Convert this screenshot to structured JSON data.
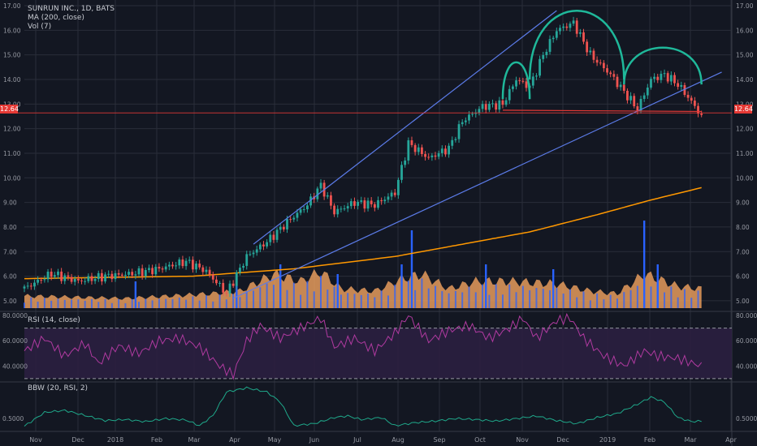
{
  "legend": {
    "main": "SUNRUN INC., 1D, BATS",
    "ma": "MA (200, close)",
    "vol": "Vol (7)",
    "rsi": "RSI (14, close)",
    "bbw": "BBW (20, RSI, 2)"
  },
  "price_tag": "12.64",
  "colors": {
    "background": "#131722",
    "grid": "#2a2e39",
    "up": "#26a69a",
    "down": "#ef5350",
    "ma": "#ff9800",
    "volume_area": "#f4a460",
    "volume_bar": "#2962ff",
    "trendline": "#5b7be8",
    "pattern": "#1fb89a",
    "neckline": "#e53935",
    "rsi": "#b03aa0",
    "rsi_band": "#2b1f40",
    "bbw": "#1fa88a"
  },
  "chart_data": [
    {
      "type": "candlestick",
      "title": "SUNRUN INC., 1D, BATS",
      "x_ticks": [
        "Nov",
        "Dec",
        "2018",
        "Feb",
        "Mar",
        "Apr",
        "May",
        "Jun",
        "Jul",
        "Aug",
        "Sep",
        "Oct",
        "Nov",
        "Dec",
        "2019",
        "Feb",
        "Mar",
        "Apr"
      ],
      "y_ticks": [
        "17.00",
        "16.00",
        "15.00",
        "14.00",
        "13.00",
        "12.00",
        "11.00",
        "10.00",
        "9.00",
        "8.00",
        "7.00",
        "6.00",
        "5.00"
      ],
      "ylim": [
        4.7,
        17.1
      ],
      "grid": true,
      "last_price": 12.64,
      "price_anchors": [
        {
          "t": 0,
          "v": 5.5
        },
        {
          "t": 8,
          "v": 6.1
        },
        {
          "t": 16,
          "v": 5.8
        },
        {
          "t": 24,
          "v": 6.0
        },
        {
          "t": 32,
          "v": 6.1
        },
        {
          "t": 40,
          "v": 6.3
        },
        {
          "t": 48,
          "v": 6.6
        },
        {
          "t": 54,
          "v": 6.2
        },
        {
          "t": 60,
          "v": 5.3
        },
        {
          "t": 66,
          "v": 6.8
        },
        {
          "t": 72,
          "v": 7.4
        },
        {
          "t": 78,
          "v": 8.2
        },
        {
          "t": 84,
          "v": 8.9
        },
        {
          "t": 88,
          "v": 9.7
        },
        {
          "t": 92,
          "v": 8.6
        },
        {
          "t": 98,
          "v": 9.0
        },
        {
          "t": 104,
          "v": 8.9
        },
        {
          "t": 110,
          "v": 9.4
        },
        {
          "t": 114,
          "v": 11.4
        },
        {
          "t": 120,
          "v": 10.8
        },
        {
          "t": 126,
          "v": 11.2
        },
        {
          "t": 130,
          "v": 12.3
        },
        {
          "t": 136,
          "v": 12.9
        },
        {
          "t": 142,
          "v": 13.0
        },
        {
          "t": 146,
          "v": 14.0
        },
        {
          "t": 150,
          "v": 13.7
        },
        {
          "t": 154,
          "v": 15.0
        },
        {
          "t": 158,
          "v": 16.0
        },
        {
          "t": 163,
          "v": 16.3
        },
        {
          "t": 168,
          "v": 15.0
        },
        {
          "t": 174,
          "v": 14.2
        },
        {
          "t": 178,
          "v": 13.5
        },
        {
          "t": 182,
          "v": 12.8
        },
        {
          "t": 186,
          "v": 14.0
        },
        {
          "t": 190,
          "v": 14.2
        },
        {
          "t": 194,
          "v": 13.8
        },
        {
          "t": 198,
          "v": 13.1
        },
        {
          "t": 201,
          "v": 12.5
        }
      ],
      "ma200": [
        {
          "t": 0,
          "v": 5.9
        },
        {
          "t": 50,
          "v": 6.0
        },
        {
          "t": 80,
          "v": 6.3
        },
        {
          "t": 110,
          "v": 6.8
        },
        {
          "t": 130,
          "v": 7.3
        },
        {
          "t": 150,
          "v": 7.8
        },
        {
          "t": 170,
          "v": 8.5
        },
        {
          "t": 186,
          "v": 9.1
        },
        {
          "t": 201,
          "v": 9.6
        }
      ],
      "annotations": {
        "channel_upper": [
          {
            "t": 68,
            "v": 7.3
          },
          {
            "t": 158,
            "v": 16.8
          }
        ],
        "channel_lower": [
          {
            "t": 62,
            "v": 5.1
          },
          {
            "t": 207,
            "v": 14.3
          }
        ],
        "neckline": [
          {
            "t": 142,
            "v": 12.75
          },
          {
            "t": 201,
            "v": 12.7
          }
        ],
        "left_shoulder": {
          "t1": 142,
          "t2": 150,
          "v_base": 13.2,
          "v_top": 14.7
        },
        "head": {
          "t1": 150,
          "t2": 178,
          "v_base": 14.0,
          "v_top": 16.8
        },
        "right_shoulder": {
          "t1": 178,
          "t2": 201,
          "v_base": 13.8,
          "v_top": 15.3
        }
      }
    },
    {
      "type": "area",
      "title": "Vol (7)",
      "volume_anchors": [
        {
          "t": 0,
          "v": 0.25
        },
        {
          "t": 30,
          "v": 0.2
        },
        {
          "t": 56,
          "v": 0.3
        },
        {
          "t": 64,
          "v": 0.35
        },
        {
          "t": 74,
          "v": 0.7
        },
        {
          "t": 82,
          "v": 0.55
        },
        {
          "t": 88,
          "v": 0.75
        },
        {
          "t": 94,
          "v": 0.4
        },
        {
          "t": 104,
          "v": 0.35
        },
        {
          "t": 112,
          "v": 0.6
        },
        {
          "t": 118,
          "v": 0.7
        },
        {
          "t": 126,
          "v": 0.4
        },
        {
          "t": 134,
          "v": 0.55
        },
        {
          "t": 144,
          "v": 0.55
        },
        {
          "t": 158,
          "v": 0.5
        },
        {
          "t": 168,
          "v": 0.35
        },
        {
          "t": 176,
          "v": 0.3
        },
        {
          "t": 184,
          "v": 0.7
        },
        {
          "t": 194,
          "v": 0.45
        },
        {
          "t": 201,
          "v": 0.4
        }
      ],
      "spikes": [
        {
          "t": 33,
          "v": 0.55
        },
        {
          "t": 63,
          "v": 0.5
        },
        {
          "t": 76,
          "v": 0.9
        },
        {
          "t": 93,
          "v": 0.7
        },
        {
          "t": 112,
          "v": 0.9
        },
        {
          "t": 115,
          "v": 1.6
        },
        {
          "t": 137,
          "v": 0.9
        },
        {
          "t": 157,
          "v": 0.8
        },
        {
          "t": 184,
          "v": 1.8
        },
        {
          "t": 188,
          "v": 0.9
        }
      ]
    },
    {
      "type": "line",
      "title": "RSI (14, close)",
      "y_ticks": [
        "80.0000",
        "60.0000",
        "40.0000"
      ],
      "ylim": [
        28,
        82
      ],
      "band": [
        30,
        70
      ],
      "rsi_anchors": [
        {
          "t": 0,
          "v": 52
        },
        {
          "t": 6,
          "v": 62
        },
        {
          "t": 12,
          "v": 48
        },
        {
          "t": 18,
          "v": 58
        },
        {
          "t": 22,
          "v": 42
        },
        {
          "t": 28,
          "v": 56
        },
        {
          "t": 34,
          "v": 50
        },
        {
          "t": 40,
          "v": 60
        },
        {
          "t": 46,
          "v": 62
        },
        {
          "t": 52,
          "v": 55
        },
        {
          "t": 58,
          "v": 40
        },
        {
          "t": 62,
          "v": 33
        },
        {
          "t": 66,
          "v": 60
        },
        {
          "t": 70,
          "v": 72
        },
        {
          "t": 76,
          "v": 62
        },
        {
          "t": 82,
          "v": 70
        },
        {
          "t": 88,
          "v": 78
        },
        {
          "t": 92,
          "v": 55
        },
        {
          "t": 98,
          "v": 62
        },
        {
          "t": 104,
          "v": 52
        },
        {
          "t": 110,
          "v": 66
        },
        {
          "t": 114,
          "v": 80
        },
        {
          "t": 120,
          "v": 60
        },
        {
          "t": 126,
          "v": 68
        },
        {
          "t": 132,
          "v": 72
        },
        {
          "t": 138,
          "v": 62
        },
        {
          "t": 144,
          "v": 70
        },
        {
          "t": 148,
          "v": 78
        },
        {
          "t": 152,
          "v": 62
        },
        {
          "t": 158,
          "v": 76
        },
        {
          "t": 162,
          "v": 78
        },
        {
          "t": 166,
          "v": 62
        },
        {
          "t": 172,
          "v": 48
        },
        {
          "t": 178,
          "v": 40
        },
        {
          "t": 184,
          "v": 52
        },
        {
          "t": 188,
          "v": 48
        },
        {
          "t": 194,
          "v": 46
        },
        {
          "t": 201,
          "v": 40
        }
      ]
    },
    {
      "type": "line",
      "title": "BBW (20, RSI, 2)",
      "y_ticks": [
        "0.5000"
      ],
      "ylim": [
        0.28,
        1.2
      ],
      "bbw_anchors": [
        {
          "t": 0,
          "v": 0.35
        },
        {
          "t": 6,
          "v": 0.62
        },
        {
          "t": 12,
          "v": 0.66
        },
        {
          "t": 18,
          "v": 0.56
        },
        {
          "t": 24,
          "v": 0.46
        },
        {
          "t": 30,
          "v": 0.48
        },
        {
          "t": 36,
          "v": 0.44
        },
        {
          "t": 42,
          "v": 0.5
        },
        {
          "t": 48,
          "v": 0.47
        },
        {
          "t": 52,
          "v": 0.36
        },
        {
          "t": 56,
          "v": 0.56
        },
        {
          "t": 60,
          "v": 1.02
        },
        {
          "t": 66,
          "v": 1.1
        },
        {
          "t": 72,
          "v": 1.02
        },
        {
          "t": 76,
          "v": 0.82
        },
        {
          "t": 80,
          "v": 0.36
        },
        {
          "t": 86,
          "v": 0.4
        },
        {
          "t": 92,
          "v": 0.52
        },
        {
          "t": 96,
          "v": 0.55
        },
        {
          "t": 100,
          "v": 0.48
        },
        {
          "t": 106,
          "v": 0.52
        },
        {
          "t": 110,
          "v": 0.36
        },
        {
          "t": 116,
          "v": 0.42
        },
        {
          "t": 122,
          "v": 0.45
        },
        {
          "t": 128,
          "v": 0.5
        },
        {
          "t": 134,
          "v": 0.48
        },
        {
          "t": 140,
          "v": 0.45
        },
        {
          "t": 146,
          "v": 0.5
        },
        {
          "t": 152,
          "v": 0.55
        },
        {
          "t": 158,
          "v": 0.46
        },
        {
          "t": 164,
          "v": 0.4
        },
        {
          "t": 170,
          "v": 0.52
        },
        {
          "t": 176,
          "v": 0.6
        },
        {
          "t": 182,
          "v": 0.78
        },
        {
          "t": 186,
          "v": 0.92
        },
        {
          "t": 190,
          "v": 0.82
        },
        {
          "t": 194,
          "v": 0.52
        },
        {
          "t": 198,
          "v": 0.44
        },
        {
          "t": 201,
          "v": 0.45
        }
      ]
    }
  ]
}
